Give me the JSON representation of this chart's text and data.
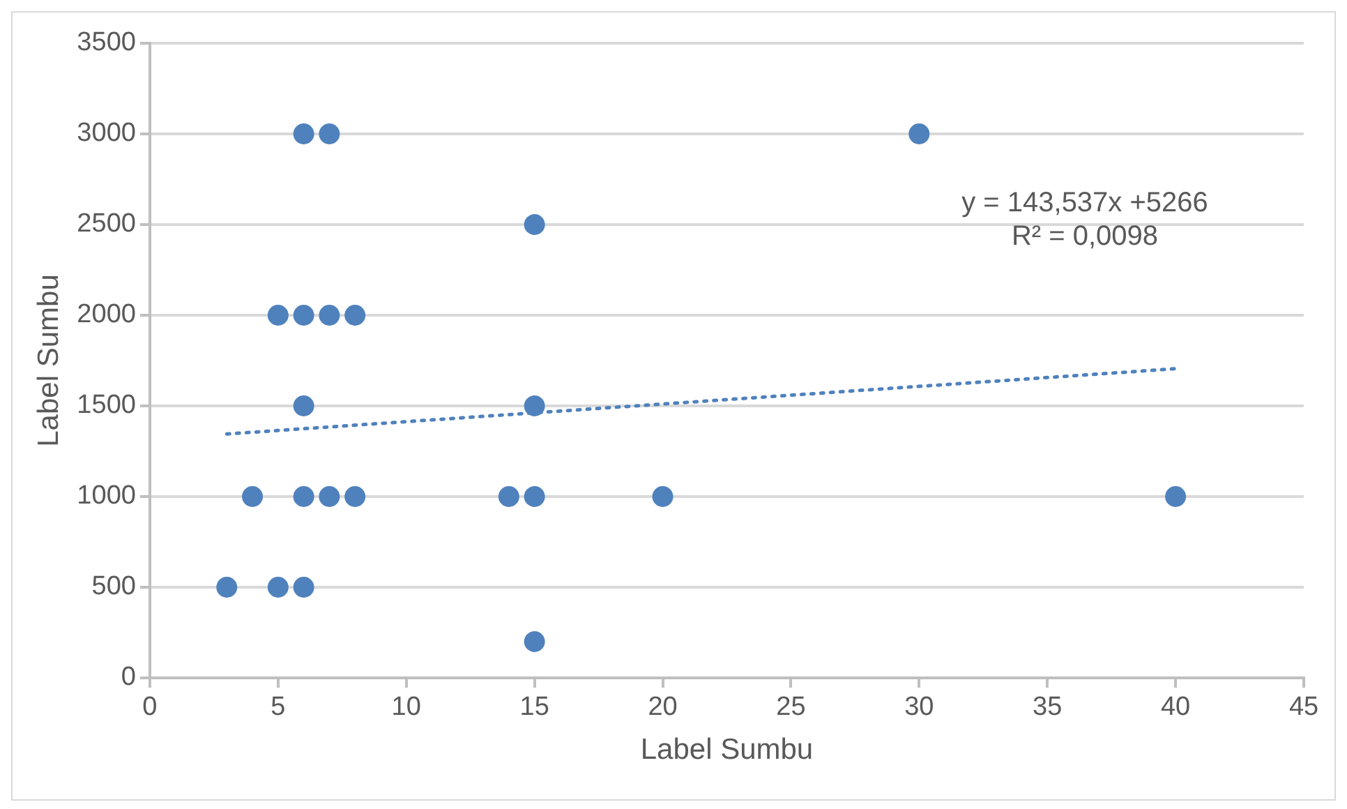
{
  "chart_data": {
    "type": "scatter",
    "xlabel": "Label Sumbu",
    "ylabel": "Label Sumbu",
    "xlim": [
      0,
      45
    ],
    "xticks": [
      0,
      5,
      10,
      15,
      20,
      25,
      30,
      35,
      40,
      45
    ],
    "ylim": [
      0,
      3500
    ],
    "yticks": [
      0,
      500,
      1000,
      1500,
      2000,
      2500,
      3000,
      3500
    ],
    "grid": "y",
    "legend": false,
    "marker": "circle",
    "series": [
      {
        "color": "#4f81bd",
        "x": [
          6,
          7,
          30,
          15,
          5,
          6,
          7,
          8,
          6,
          15,
          4,
          6,
          7,
          8,
          14,
          15,
          20,
          40,
          3,
          5,
          6,
          15
        ],
        "values": [
          3000,
          3000,
          3000,
          2500,
          2000,
          2000,
          2000,
          2000,
          1500,
          1500,
          1000,
          1000,
          1000,
          1000,
          1000,
          1000,
          1000,
          1000,
          500,
          500,
          500,
          200
        ]
      },
      {
        "type": "line",
        "color": "#4f81bd",
        "line_style": "dotted",
        "marker": "none",
        "x": [
          3,
          40
        ],
        "values": [
          1345,
          1705
        ]
      }
    ],
    "annotations": [
      "y = 143,537x +5266",
      "R² = 0,0098"
    ]
  }
}
